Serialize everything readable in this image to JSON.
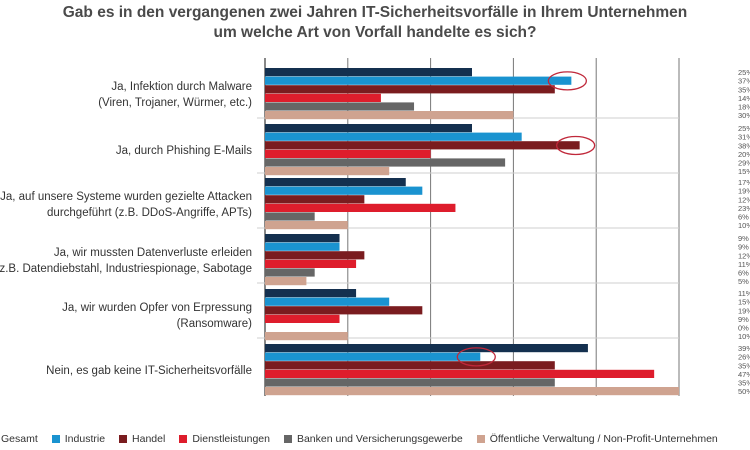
{
  "chart_data": {
    "type": "bar",
    "orientation": "horizontal",
    "title_lines": [
      "Gab es in den vergangenen zwei Jahren IT-Sicherheitsvorfälle in Ihrem Unternehmen",
      "um welche Art von Vorfall handelte es sich?"
    ],
    "categories": [
      [
        "Ja, Infektion durch Malware",
        "(Viren, Trojaner, Würmer, etc.)"
      ],
      [
        "Ja, durch Phishing E-Mails"
      ],
      [
        "Ja, auf unsere Systeme wurden gezielte Attacken",
        "durchgeführt (z.B. DDoS-Angriffe, APTs)"
      ],
      [
        "Ja, wir mussten Datenverluste erleiden",
        "(z.B. Datendiebstahl, Industriespionage, Sabotage"
      ],
      [
        "Ja, wir wurden Opfer von Erpressung",
        "(Ransomware)"
      ],
      [
        "Nein, es gab keine IT-Sicherheitsvorfälle"
      ]
    ],
    "series": [
      {
        "name": "Gesamt",
        "color": "#14304f",
        "values": [
          25,
          25,
          17,
          9,
          11,
          39
        ]
      },
      {
        "name": "Industrie",
        "color": "#1a93d0",
        "values": [
          37,
          31,
          19,
          9,
          15,
          26
        ]
      },
      {
        "name": "Handel",
        "color": "#7a1c1f",
        "values": [
          35,
          38,
          12,
          12,
          19,
          35
        ]
      },
      {
        "name": "Dienstleistungen",
        "color": "#de1d2c",
        "values": [
          14,
          20,
          23,
          11,
          9,
          47
        ]
      },
      {
        "name": "Banken und Versicherungsgewerbe",
        "color": "#666666",
        "values": [
          18,
          29,
          6,
          6,
          0,
          35
        ]
      },
      {
        "name": "Öffentliche Verwaltung / Non-Profit-Unternehmen",
        "color": "#cfa390",
        "values": [
          30,
          15,
          10,
          5,
          10,
          50
        ]
      }
    ],
    "value_labels": [
      [
        "25%",
        "37%",
        "35%",
        "14%",
        "18%",
        "30%"
      ],
      [
        "25%",
        "31%",
        "38%",
        "20%",
        "29%",
        "15%"
      ],
      [
        "17%",
        "19%",
        "12%",
        "23%",
        "6%",
        "10%"
      ],
      [
        "9%",
        "9%",
        "12%",
        "11%",
        "6%",
        "5%"
      ],
      [
        "11%",
        "15%",
        "19%",
        "9%",
        "0%",
        "10%"
      ],
      [
        "39%",
        "26%",
        "35%",
        "47%",
        "35%",
        "50%"
      ]
    ],
    "xlim": [
      0,
      50
    ],
    "gridlines": [
      0,
      10,
      20,
      30,
      40,
      50
    ],
    "highlights": [
      {
        "category": 0,
        "series": "Industrie"
      },
      {
        "category": 1,
        "series": "Handel"
      },
      {
        "category": 5,
        "series": "Industrie"
      }
    ],
    "highlight_color": "#c0283a",
    "legend_position": "bottom"
  }
}
